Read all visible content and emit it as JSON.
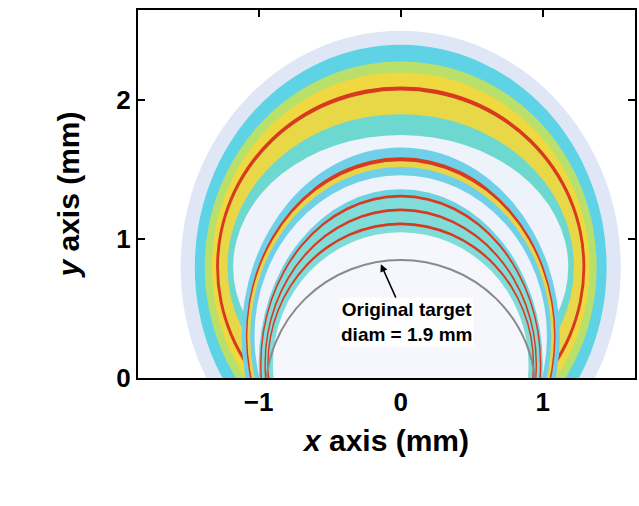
{
  "chart_data": {
    "type": "image",
    "x_label": "x axis (mm)",
    "y_label": "y axis (mm)",
    "xlim": [
      -1.85,
      1.65
    ],
    "ylim": [
      0,
      2.65
    ],
    "xticks": [
      {
        "value": -1,
        "label": "−1"
      },
      0,
      1
    ],
    "yticks": [
      0,
      1,
      2
    ],
    "grid": false,
    "rings": [
      {
        "left": -1.55,
        "right": 1.55,
        "bottom": -0.9,
        "top": 2.5,
        "color": "#dfe6f5"
      },
      {
        "left": -1.45,
        "right": 1.45,
        "bottom": -0.8,
        "top": 2.4,
        "color": "#5fd3e6"
      },
      {
        "left": -1.38,
        "right": 1.38,
        "bottom": -0.68,
        "top": 2.28,
        "color": "#b8e06a"
      },
      {
        "left": -1.33,
        "right": 1.33,
        "bottom": -0.6,
        "top": 2.2,
        "color": "#f0d840"
      },
      {
        "left": -1.3,
        "right": 1.3,
        "bottom": -0.5,
        "top": 2.1,
        "color": "#d83a20"
      },
      {
        "left": -1.28,
        "right": 1.28,
        "bottom": -0.47,
        "top": 2.07,
        "color": "#e8d848"
      },
      {
        "left": -1.22,
        "right": 1.22,
        "bottom": -0.3,
        "top": 1.9,
        "color": "#6cd8d0"
      },
      {
        "left": -1.18,
        "right": 1.18,
        "bottom": -0.15,
        "top": 1.75,
        "color": "#eef2fa"
      },
      {
        "left": -1.12,
        "right": 1.12,
        "bottom": -1.06,
        "top": 1.66,
        "color": "#6fd0e8"
      },
      {
        "left": -1.09,
        "right": 1.09,
        "bottom": -0.99,
        "top": 1.59,
        "color": "#d83a20"
      },
      {
        "left": -1.08,
        "right": 1.08,
        "bottom": -0.96,
        "top": 1.56,
        "color": "#e6d44a"
      },
      {
        "left": -1.06,
        "right": 1.06,
        "bottom": -0.92,
        "top": 1.52,
        "color": "#6fd0e8"
      },
      {
        "left": -1.03,
        "right": 1.03,
        "bottom": -0.86,
        "top": 1.46,
        "color": "#eef2fa"
      },
      {
        "left": -1.0,
        "right": 1.0,
        "bottom": -1.16,
        "top": 1.36,
        "color": "#6cd4e0"
      },
      {
        "left": -0.99,
        "right": 0.99,
        "bottom": -1.12,
        "top": 1.32,
        "color": "#d83a20"
      },
      {
        "left": -0.98,
        "right": 0.98,
        "bottom": -1.1,
        "top": 1.3,
        "color": "#7fdcd8"
      },
      {
        "left": -0.96,
        "right": 0.96,
        "bottom": -1.02,
        "top": 1.22,
        "color": "#d83a20"
      },
      {
        "left": -0.95,
        "right": 0.95,
        "bottom": -1.0,
        "top": 1.2,
        "color": "#7fdcd8"
      },
      {
        "left": -0.94,
        "right": 0.94,
        "bottom": -0.92,
        "top": 1.12,
        "color": "#d83a20"
      },
      {
        "left": -0.93,
        "right": 0.93,
        "bottom": -0.9,
        "top": 1.1,
        "color": "#7fdcd8"
      },
      {
        "left": -0.9,
        "right": 0.9,
        "bottom": -0.85,
        "top": 1.05,
        "color": "#f6f7fc"
      }
    ],
    "target": {
      "x": 0,
      "y": -0.1,
      "diameter": 1.9,
      "color": "#8a8a8a"
    },
    "annotation": {
      "lines": [
        "Original target",
        "diam = 1.9 mm"
      ],
      "x": -0.14,
      "y": 0.82
    }
  }
}
